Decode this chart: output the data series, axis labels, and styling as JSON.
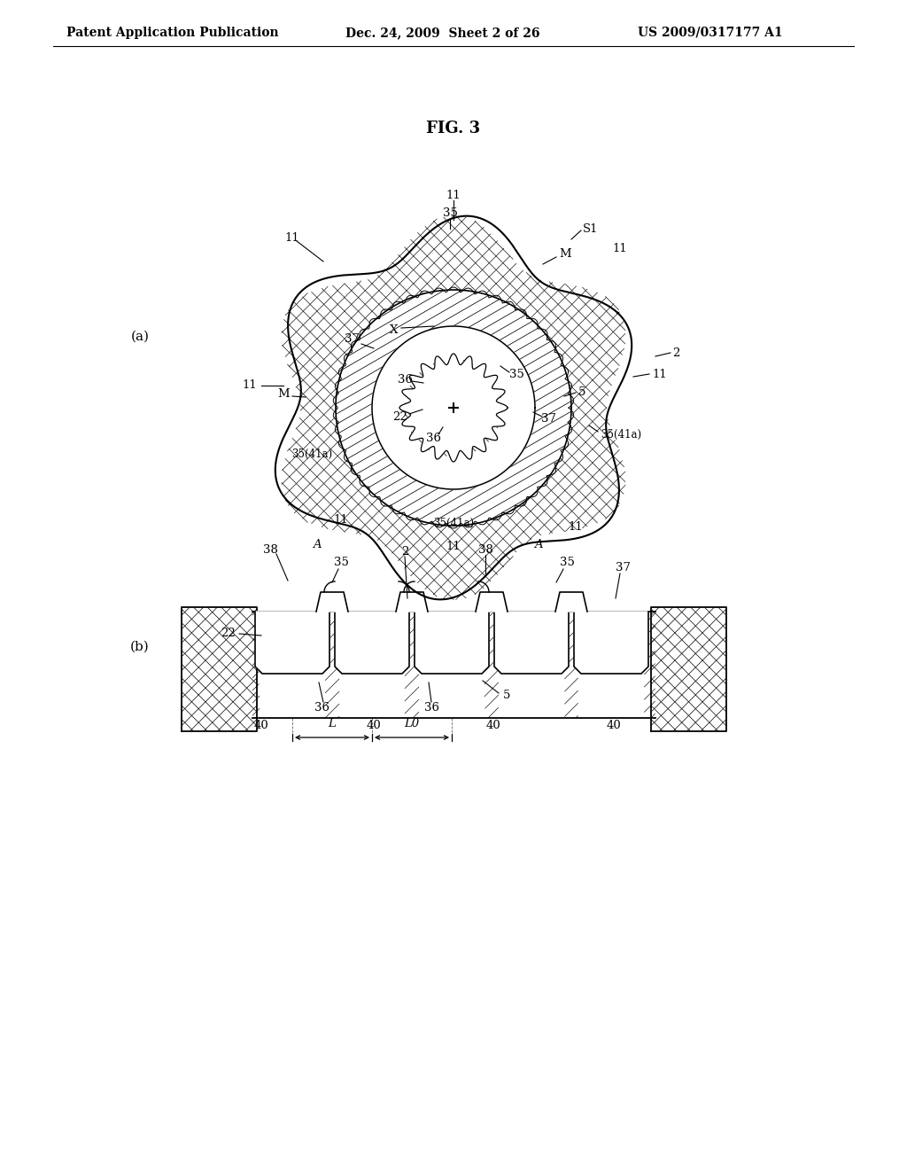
{
  "background_color": "#ffffff",
  "title": "FIG. 3",
  "header_left": "Patent Application Publication",
  "header_mid": "Dec. 24, 2009  Sheet 2 of 26",
  "header_right": "US 2009/0317177 A1",
  "label_a": "(a)",
  "label_b": "(b)",
  "fig_title_fontsize": 13,
  "header_fontsize": 10,
  "label_fontsize": 11,
  "annotation_fontsize": 9.5
}
